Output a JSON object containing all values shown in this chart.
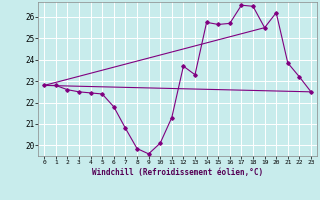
{
  "xlabel": "Windchill (Refroidissement éolien,°C)",
  "background_color": "#c8ecec",
  "line_color": "#800080",
  "grid_color": "#ffffff",
  "xlim": [
    -0.5,
    23.5
  ],
  "ylim": [
    19.5,
    26.7
  ],
  "yticks": [
    20,
    21,
    22,
    23,
    24,
    25,
    26
  ],
  "xticks": [
    0,
    1,
    2,
    3,
    4,
    5,
    6,
    7,
    8,
    9,
    10,
    11,
    12,
    13,
    14,
    15,
    16,
    17,
    18,
    19,
    20,
    21,
    22,
    23
  ],
  "line1_x": [
    0,
    1,
    2,
    3,
    4,
    5,
    6,
    7,
    8,
    9,
    10,
    11,
    12,
    13,
    14,
    15,
    16,
    17,
    18,
    19,
    20,
    21,
    22,
    23
  ],
  "line1_y": [
    22.8,
    22.8,
    22.6,
    22.5,
    22.45,
    22.4,
    21.8,
    20.8,
    19.85,
    19.6,
    20.1,
    21.3,
    23.7,
    23.3,
    25.75,
    25.65,
    25.7,
    26.55,
    26.5,
    25.5,
    26.2,
    23.85,
    23.2,
    22.5
  ],
  "line2_x": [
    0,
    23
  ],
  "line2_y": [
    22.8,
    22.5
  ],
  "line3_x": [
    0,
    19
  ],
  "line3_y": [
    22.8,
    25.5
  ]
}
